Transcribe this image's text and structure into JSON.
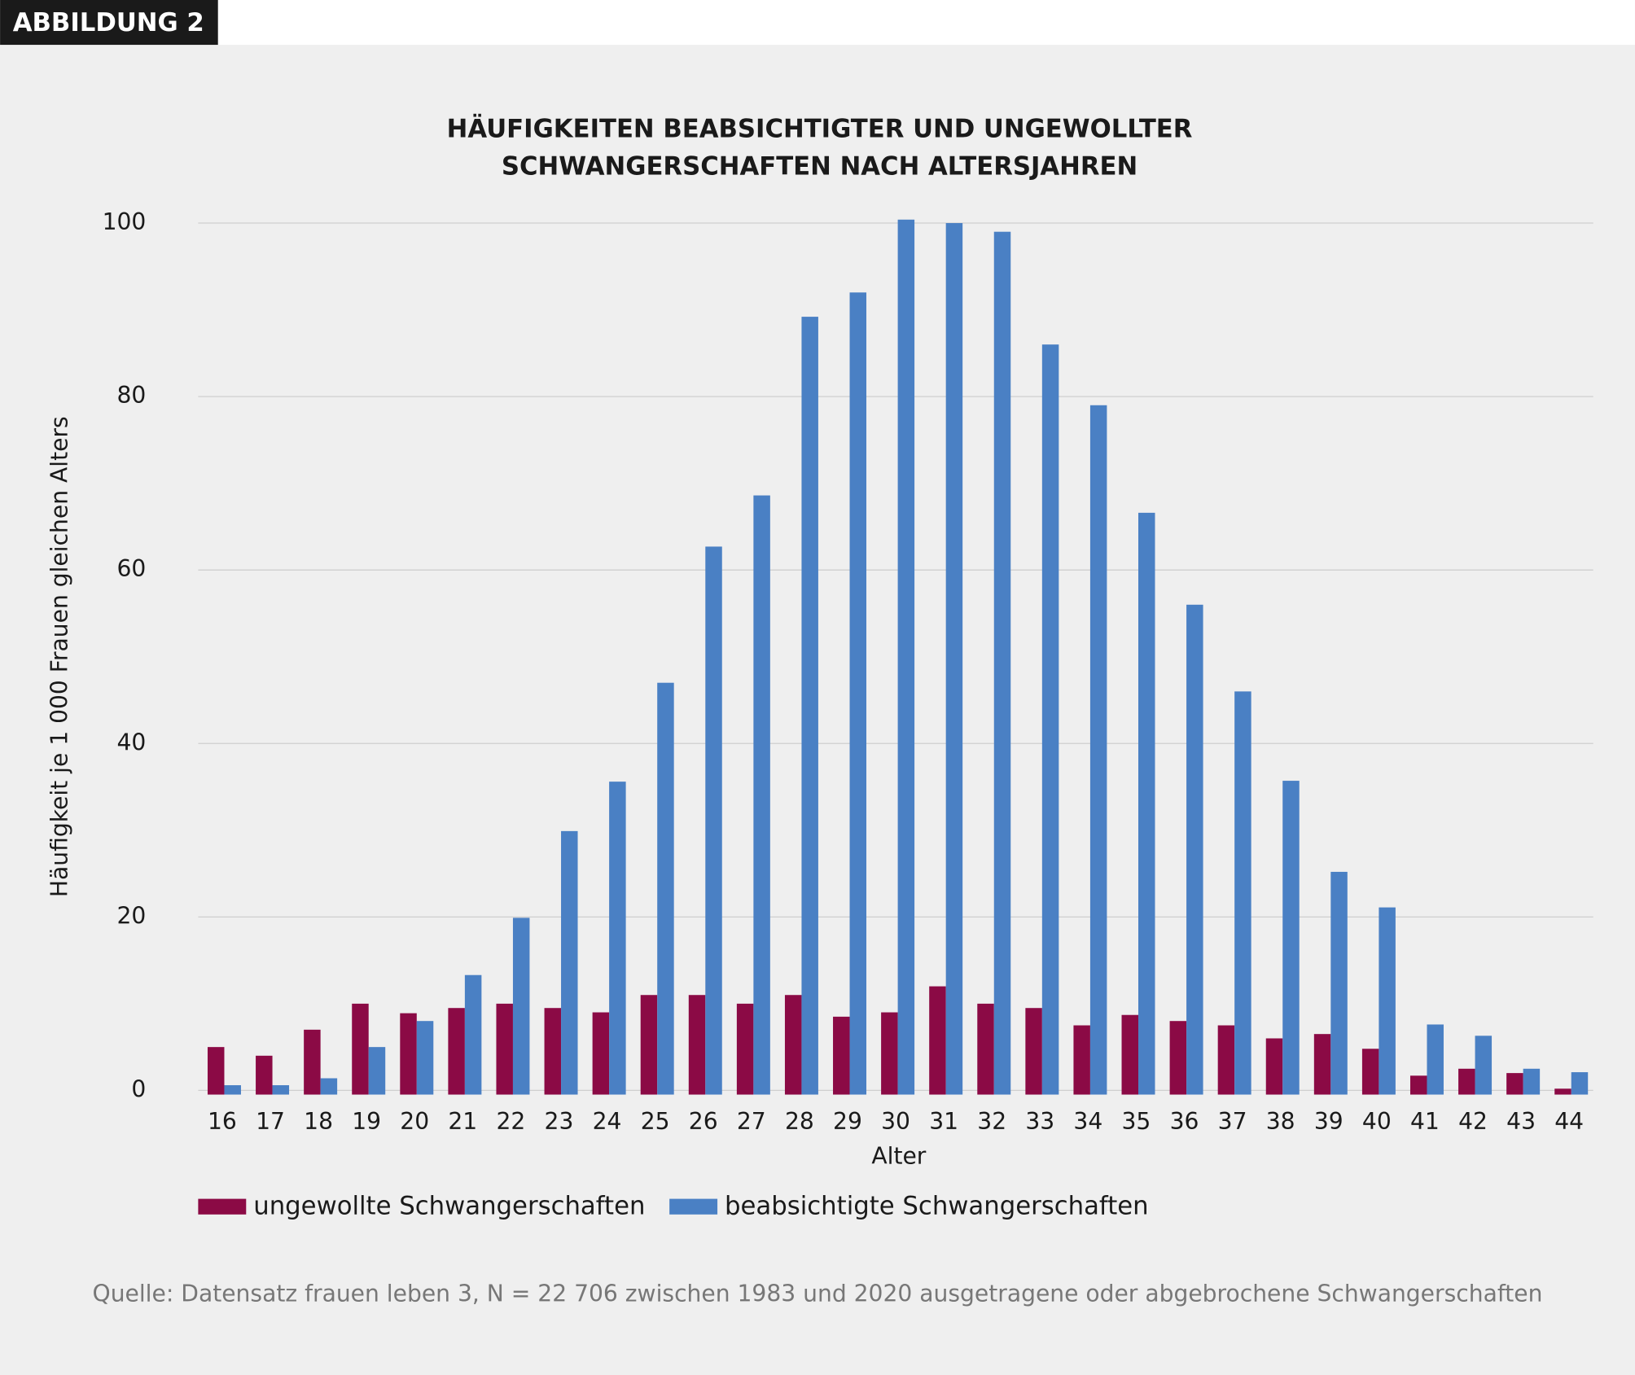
{
  "figure_label": "ABBILDUNG 2",
  "source": "Quelle: Datensatz frauen leben 3, N = 22 706 zwischen 1983 und 2020 ausgetragene oder abgebrochene Schwangerschaften",
  "chart_data": {
    "type": "bar",
    "title": [
      "HÄUFIGKEITEN BEABSICHTIGTER UND UNGEWOLLTER",
      "SCHWANGERSCHAFTEN NACH ALTERSJAHREN"
    ],
    "x_label": "Alter",
    "y_label": "Häufigkeit je 1 000 Frauen gleichen Alters",
    "categories": [
      "16",
      "17",
      "18",
      "19",
      "20",
      "21",
      "22",
      "23",
      "24",
      "25",
      "26",
      "27",
      "28",
      "29",
      "30",
      "31",
      "32",
      "33",
      "34",
      "35",
      "36",
      "37",
      "38",
      "39",
      "40",
      "41",
      "42",
      "43",
      "44"
    ],
    "series": [
      {
        "name": "ungewollte Schwangerschaften",
        "color": "#8b0a45",
        "values": [
          5,
          4,
          7,
          10,
          8.9,
          9.5,
          10,
          9.5,
          9,
          11,
          11,
          10,
          11,
          8.5,
          9,
          12,
          10,
          9.5,
          7.5,
          8.7,
          8,
          7.5,
          6,
          6.5,
          4.8,
          1.7,
          2.5,
          2,
          0.2
        ]
      },
      {
        "name": "beabsichtigte Schwangerschaften",
        "color": "#4a80c4",
        "values": [
          0.6,
          0.6,
          1.4,
          5,
          8,
          13.3,
          19.9,
          29.9,
          35.6,
          47,
          62.7,
          68.6,
          89.2,
          92,
          100.4,
          100,
          99,
          86,
          79,
          66.6,
          56,
          46,
          35.7,
          25.2,
          21.1,
          7.6,
          6.3,
          2.5,
          2.1
        ]
      }
    ],
    "ylim": [
      0,
      100
    ],
    "yticks": [
      0,
      20,
      40,
      60,
      80,
      100
    ],
    "grid": true,
    "legend": "bottom"
  }
}
